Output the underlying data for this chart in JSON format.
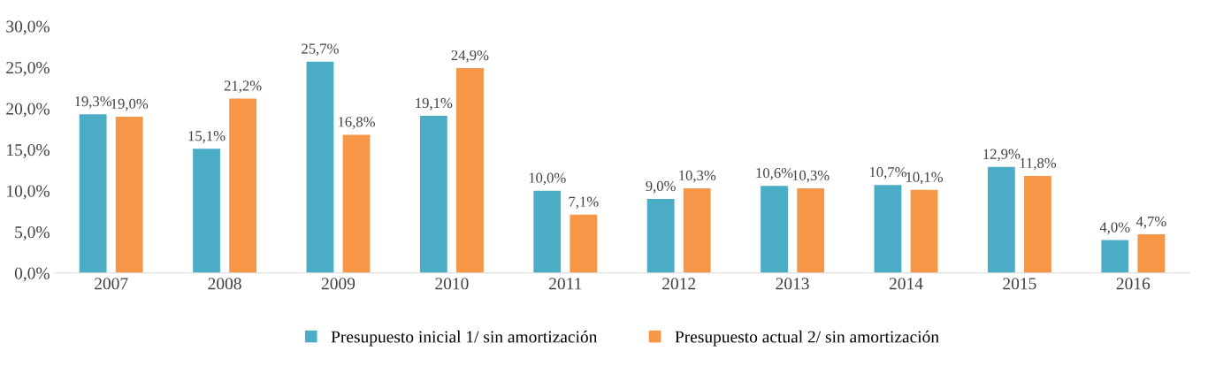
{
  "chart_data": {
    "type": "bar",
    "categories": [
      "2007",
      "2008",
      "2009",
      "2010",
      "2011",
      "2012",
      "2013",
      "2014",
      "2015",
      "2016"
    ],
    "series": [
      {
        "name": "Presupuesto inicial 1/ sin amortización",
        "color": "#4bacc6",
        "values": [
          19.3,
          15.1,
          25.7,
          19.1,
          10.0,
          9.0,
          10.6,
          10.7,
          12.9,
          4.0
        ],
        "value_labels": [
          "19,3%",
          "15,1%",
          "25,7%",
          "19,1%",
          "10,0%",
          "9,0%",
          "10,6%",
          "10,7%",
          "12,9%",
          "4,0%"
        ]
      },
      {
        "name": "Presupuesto actual 2/ sin amortización",
        "color": "#f79646",
        "values": [
          19.0,
          21.2,
          16.8,
          24.9,
          7.1,
          10.3,
          10.3,
          10.1,
          11.8,
          4.7
        ],
        "value_labels": [
          "19,0%",
          "21,2%",
          "16,8%",
          "24,9%",
          "7,1%",
          "10,3%",
          "10,3%",
          "10,1%",
          "11,8%",
          "4,7%"
        ]
      }
    ],
    "ylim": [
      0,
      30
    ],
    "yticks": [
      {
        "value": 0,
        "label": "0,0%"
      },
      {
        "value": 5,
        "label": "5,0%"
      },
      {
        "value": 10,
        "label": "10,0%"
      },
      {
        "value": 15,
        "label": "15,0%"
      },
      {
        "value": 20,
        "label": "20,0%"
      },
      {
        "value": 25,
        "label": "25,0%"
      },
      {
        "value": 30,
        "label": "30,0%"
      }
    ],
    "grid": false,
    "legend": "bottom"
  }
}
